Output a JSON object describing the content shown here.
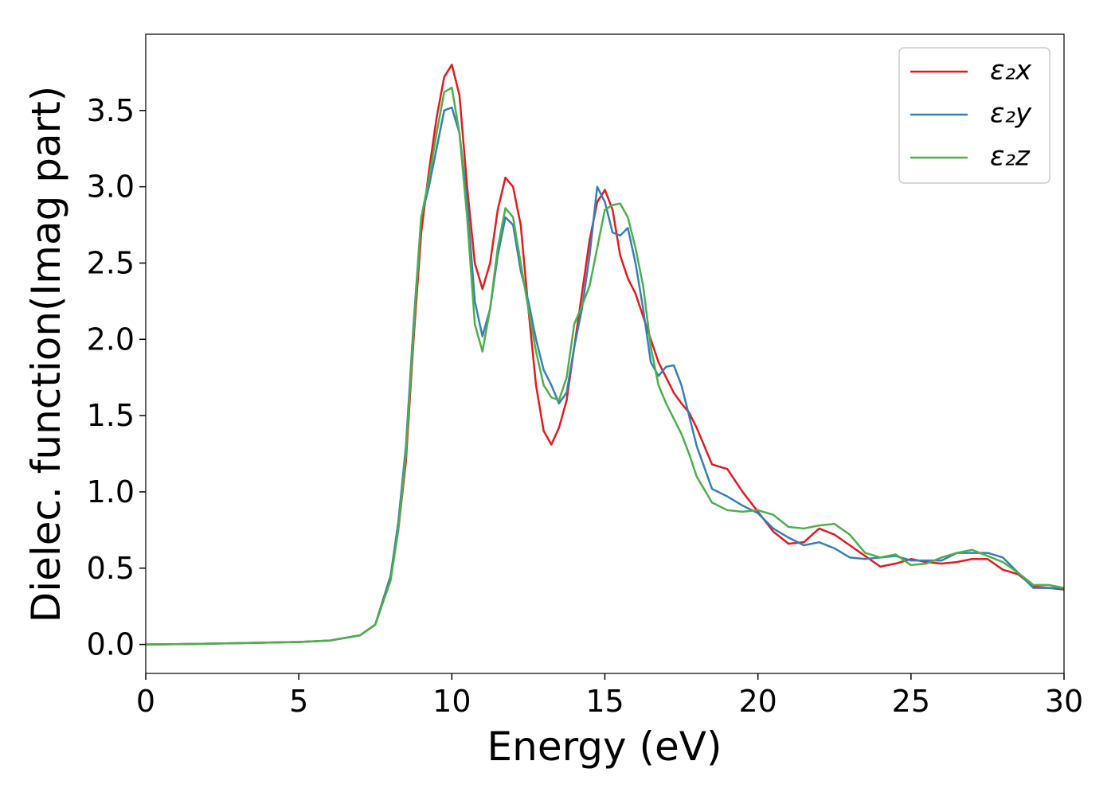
{
  "chart_data": {
    "type": "line",
    "xlabel": "Energy (eV)",
    "ylabel": "Dielec. function(Imag part)",
    "xlim": [
      0,
      30
    ],
    "ylim": [
      -0.19,
      4.0
    ],
    "xticks": [
      0,
      5,
      10,
      15,
      20,
      25,
      30
    ],
    "yticks": [
      {
        "value": 0,
        "label": "0.0"
      },
      0.5,
      {
        "value": 1,
        "label": "1.0"
      },
      1.5,
      {
        "value": 2,
        "label": "2.0"
      },
      2.5,
      {
        "value": 3,
        "label": "3.0"
      },
      3.5
    ],
    "legend": "upper right",
    "x": [
      0,
      1,
      2,
      3,
      4,
      5,
      6,
      7,
      7.5,
      8,
      8.25,
      8.5,
      8.75,
      9,
      9.25,
      9.5,
      9.75,
      10,
      10.25,
      10.5,
      10.75,
      11,
      11.25,
      11.5,
      11.75,
      12,
      12.25,
      12.5,
      12.75,
      13,
      13.25,
      13.5,
      13.75,
      14,
      14.25,
      14.5,
      14.75,
      15,
      15.25,
      15.5,
      15.75,
      16,
      16.25,
      16.5,
      16.75,
      17,
      17.25,
      17.5,
      17.75,
      18,
      18.5,
      19,
      19.5,
      20,
      20.5,
      21,
      21.5,
      22,
      22.5,
      23,
      23.5,
      24,
      24.5,
      25,
      25.5,
      26,
      26.5,
      27,
      27.5,
      28,
      28.5,
      29,
      29.5,
      30
    ],
    "series": [
      {
        "name": "ε₂x",
        "color": "#e41a1c",
        "values": [
          0,
          0.002,
          0.005,
          0.008,
          0.012,
          0.016,
          0.025,
          0.06,
          0.13,
          0.45,
          0.75,
          1.2,
          2.0,
          2.7,
          3.1,
          3.45,
          3.72,
          3.8,
          3.6,
          3.0,
          2.5,
          2.33,
          2.5,
          2.85,
          3.06,
          3.0,
          2.75,
          2.2,
          1.7,
          1.4,
          1.31,
          1.42,
          1.6,
          1.95,
          2.3,
          2.65,
          2.9,
          2.98,
          2.85,
          2.55,
          2.4,
          2.3,
          2.15,
          2.0,
          1.85,
          1.75,
          1.65,
          1.58,
          1.52,
          1.42,
          1.18,
          1.15,
          1.0,
          0.87,
          0.74,
          0.66,
          0.67,
          0.76,
          0.72,
          0.65,
          0.58,
          0.51,
          0.53,
          0.56,
          0.54,
          0.53,
          0.54,
          0.56,
          0.56,
          0.49,
          0.46,
          0.38,
          0.37,
          0.36
        ]
      },
      {
        "name": "ε₂y",
        "color": "#377eb8",
        "values": [
          0,
          0.002,
          0.005,
          0.008,
          0.012,
          0.016,
          0.025,
          0.06,
          0.13,
          0.45,
          0.8,
          1.3,
          2.1,
          2.8,
          3.0,
          3.25,
          3.5,
          3.52,
          3.35,
          2.9,
          2.25,
          2.02,
          2.2,
          2.55,
          2.8,
          2.75,
          2.45,
          2.25,
          2.0,
          1.8,
          1.7,
          1.58,
          1.65,
          1.95,
          2.2,
          2.55,
          3.0,
          2.9,
          2.7,
          2.68,
          2.73,
          2.5,
          2.2,
          1.85,
          1.76,
          1.82,
          1.83,
          1.7,
          1.5,
          1.3,
          1.02,
          0.97,
          0.91,
          0.86,
          0.76,
          0.7,
          0.65,
          0.67,
          0.63,
          0.57,
          0.56,
          0.57,
          0.58,
          0.55,
          0.55,
          0.55,
          0.6,
          0.6,
          0.6,
          0.57,
          0.47,
          0.37,
          0.37,
          0.37
        ]
      },
      {
        "name": "ε₂z",
        "color": "#4daf4a",
        "values": [
          0,
          0.002,
          0.005,
          0.008,
          0.012,
          0.016,
          0.025,
          0.06,
          0.13,
          0.42,
          0.75,
          1.25,
          2.05,
          2.8,
          3.05,
          3.35,
          3.62,
          3.65,
          3.35,
          2.8,
          2.1,
          1.92,
          2.2,
          2.6,
          2.86,
          2.8,
          2.5,
          2.2,
          1.92,
          1.7,
          1.62,
          1.6,
          1.75,
          2.1,
          2.22,
          2.35,
          2.6,
          2.85,
          2.88,
          2.89,
          2.8,
          2.6,
          2.35,
          1.95,
          1.7,
          1.58,
          1.48,
          1.38,
          1.25,
          1.1,
          0.93,
          0.88,
          0.87,
          0.88,
          0.85,
          0.77,
          0.76,
          0.78,
          0.79,
          0.72,
          0.6,
          0.57,
          0.59,
          0.52,
          0.53,
          0.57,
          0.6,
          0.62,
          0.58,
          0.54,
          0.47,
          0.39,
          0.39,
          0.37
        ]
      }
    ]
  }
}
